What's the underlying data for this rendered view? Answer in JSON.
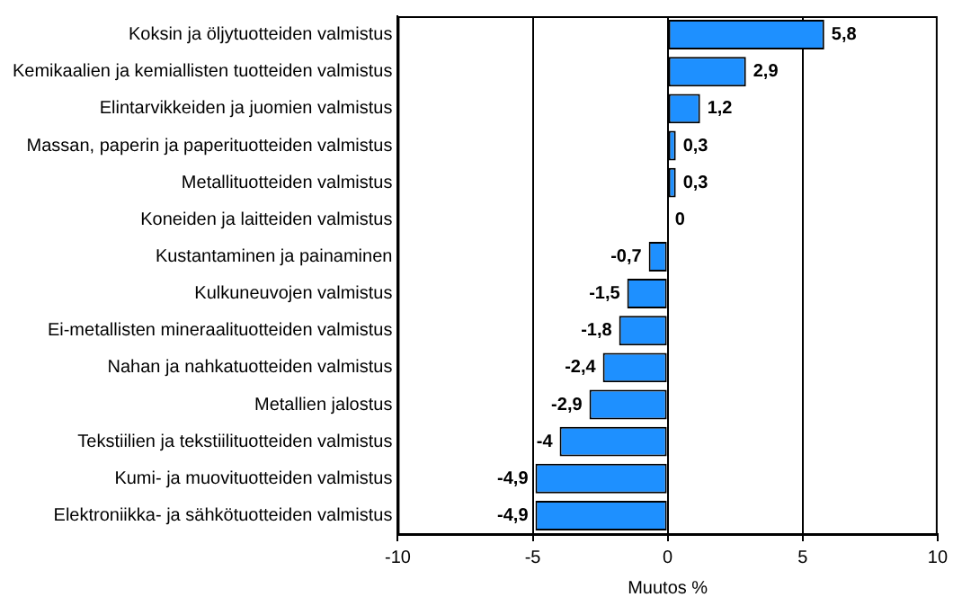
{
  "chart_data": {
    "type": "bar",
    "orientation": "horizontal",
    "xlabel": "Muutos %",
    "categories": [
      "Koksin ja öljytuotteiden valmistus",
      "Kemikaalien ja kemiallisten tuotteiden valmistus",
      "Elintarvikkeiden ja juomien valmistus",
      "Massan, paperin ja paperituotteiden valmistus",
      "Metallituotteiden valmistus",
      "Koneiden ja laitteiden valmistus",
      "Kustantaminen ja painaminen",
      "Kulkuneuvojen valmistus",
      "Ei-metallisten mineraalituotteiden valmistus",
      "Nahan ja nahkatuotteiden valmistus",
      "Metallien jalostus",
      "Tekstiilien ja tekstiilituotteiden valmistus",
      "Kumi- ja muovituotteiden valmistus",
      "Elektroniikka- ja sähkötuotteiden valmistus"
    ],
    "values": [
      5.8,
      2.9,
      1.2,
      0.3,
      0.3,
      0,
      -0.7,
      -1.5,
      -1.8,
      -2.4,
      -2.9,
      -4,
      -4.9,
      -4.9
    ],
    "value_labels": [
      "5,8",
      "2,9",
      "1,2",
      "0,3",
      "0,3",
      "0",
      "-0,7",
      "-1,5",
      "-1,8",
      "-2,4",
      "-2,9",
      "-4",
      "-4,9",
      "-4,9"
    ],
    "color": "#1e90ff",
    "xlim": [
      -10,
      10
    ],
    "xticks": [
      -10,
      -5,
      0,
      5,
      10
    ],
    "grid": "x",
    "legend": false
  }
}
